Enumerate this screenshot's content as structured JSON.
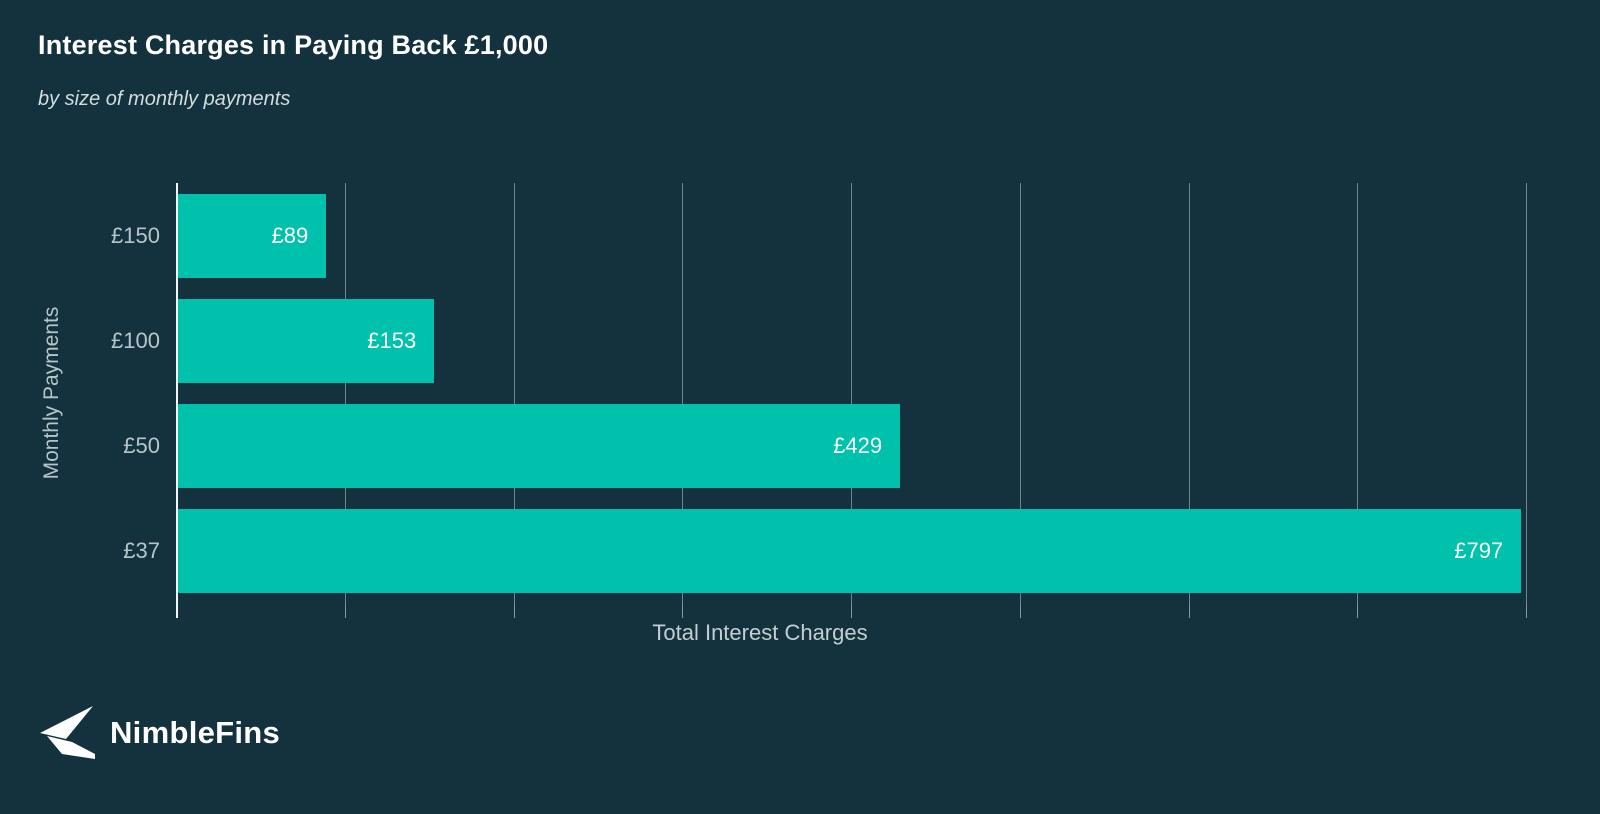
{
  "figure": {
    "background_color": "#14323E"
  },
  "chart_data": {
    "type": "bar",
    "orientation": "horizontal",
    "title": "Interest Charges in Paying Back £1,000",
    "subtitle": "by size of monthly payments",
    "categories": [
      "£150",
      "£100",
      "£50",
      "£37"
    ],
    "values": [
      89,
      153,
      429,
      797
    ],
    "value_labels": [
      "£89",
      "£153",
      "£429",
      "£797"
    ],
    "xlabel": "Total Interest Charges",
    "ylabel": "Monthly Payments",
    "xlim": [
      0,
      820
    ],
    "gridline_step": 100,
    "grid": true,
    "legend": "none",
    "bar_color": "#00C2AC",
    "value_label_color": "#FFFFFF",
    "category_label_color": "#B7C5CB",
    "gridline_color": "rgba(223,233,238,0.45)",
    "axis_line_color": "#F4F7F8"
  },
  "branding": {
    "logo_text": "NimbleFins",
    "logo_color": "#FFFFFF"
  }
}
